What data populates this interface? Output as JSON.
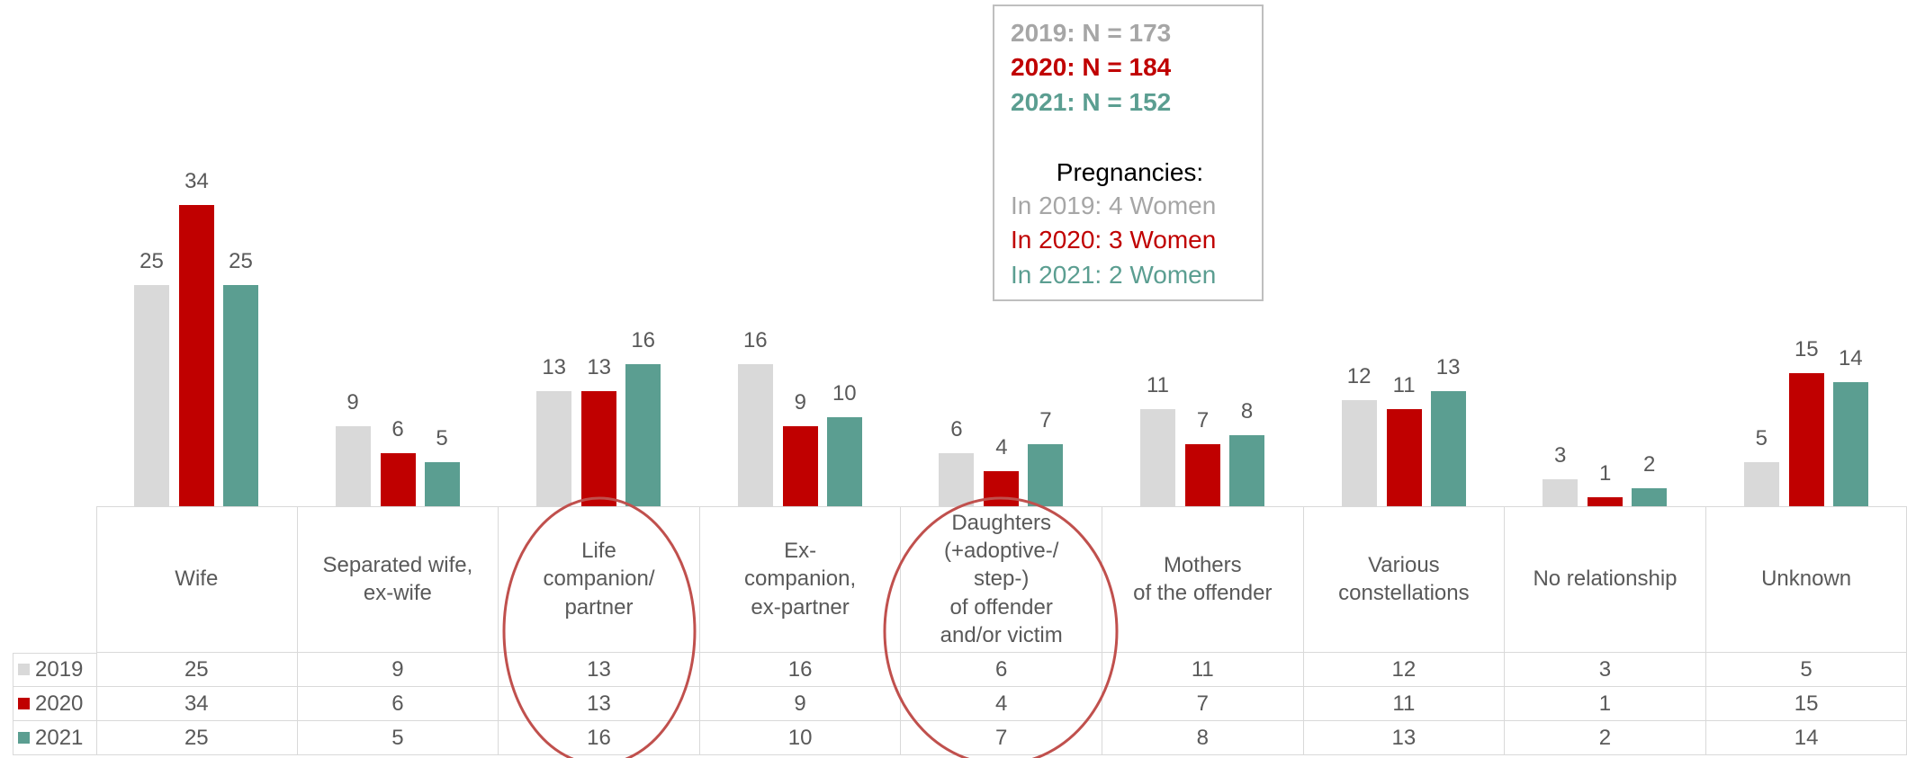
{
  "chart_data": {
    "type": "bar",
    "categories": [
      "Wife",
      "Separated wife,\nex-wife",
      "Life\ncompanion/\npartner",
      "Ex-\ncompanion,\nex-partner",
      "Daughters\n(+adoptive-/\nstep-)\nof offender\nand/or victim",
      "Mothers\nof the offender",
      "Various\nconstellations",
      "No relationship",
      "Unknown"
    ],
    "series": [
      {
        "name": "2019",
        "color": "#d9d9d9",
        "values": [
          25,
          9,
          13,
          16,
          6,
          11,
          12,
          3,
          5
        ]
      },
      {
        "name": "2020",
        "color": "#c00000",
        "values": [
          34,
          6,
          13,
          9,
          4,
          7,
          11,
          1,
          15
        ]
      },
      {
        "name": "2021",
        "color": "#5b9e91",
        "values": [
          25,
          5,
          16,
          10,
          7,
          8,
          13,
          2,
          14
        ]
      }
    ],
    "annotation": {
      "sample_sizes": [
        "2019: N = 173",
        "2020: N = 184",
        "2021: N = 152"
      ],
      "pregnancies_title": "Pregnancies:",
      "pregnancies": [
        "In 2019: 4 Women",
        "In 2020: 3 Women",
        "In 2021: 2 Women"
      ]
    }
  }
}
